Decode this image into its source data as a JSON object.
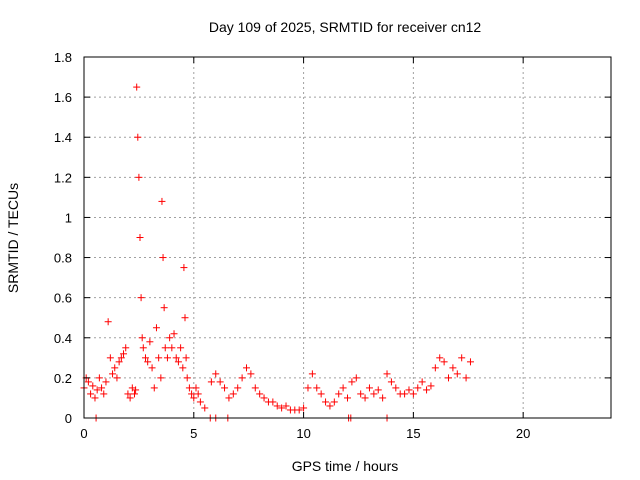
{
  "chart_data": {
    "type": "scatter",
    "title": "Day 109 of 2025, SRMTID for receiver cn12",
    "xlabel": "GPS time / hours",
    "ylabel": "SRMTID / TECUs",
    "xlim": [
      0,
      24
    ],
    "ylim": [
      0,
      1.8
    ],
    "xticks": [
      0,
      5,
      10,
      15,
      20
    ],
    "xtick_labels": [
      "0",
      "5",
      "10",
      "15",
      "20"
    ],
    "yticks": [
      0,
      0.2,
      0.4,
      0.6,
      0.8,
      1,
      1.2,
      1.4,
      1.6,
      1.8
    ],
    "ytick_labels": [
      "0",
      "0.2",
      "0.4",
      "0.6",
      "0.8",
      "1",
      "1.2",
      "1.4",
      "1.6",
      "1.8"
    ],
    "grid": true,
    "marker": "+",
    "marker_color": "#ff0000",
    "series": [
      {
        "name": "SRMTID",
        "x": [
          0.0,
          0.1,
          0.2,
          0.3,
          0.4,
          0.5,
          0.6,
          0.7,
          0.8,
          0.9,
          1.0,
          1.1,
          1.2,
          1.3,
          1.4,
          1.5,
          1.6,
          1.7,
          1.8,
          1.9,
          2.0,
          2.1,
          2.2,
          2.3,
          2.35,
          2.4,
          2.45,
          2.5,
          2.55,
          2.6,
          2.65,
          2.7,
          2.8,
          2.9,
          3.0,
          3.1,
          3.2,
          3.3,
          3.4,
          3.5,
          3.55,
          3.6,
          3.65,
          3.7,
          3.8,
          3.9,
          4.0,
          4.1,
          4.2,
          4.3,
          4.4,
          4.5,
          4.55,
          4.6,
          4.65,
          4.7,
          4.8,
          4.9,
          5.0,
          5.1,
          5.2,
          5.3,
          5.5,
          5.8,
          6.0,
          6.2,
          6.4,
          6.6,
          6.8,
          7.0,
          7.2,
          7.4,
          7.6,
          7.8,
          8.0,
          8.2,
          8.4,
          8.6,
          8.8,
          9.0,
          9.2,
          9.4,
          9.6,
          9.8,
          10.0,
          10.2,
          10.4,
          10.6,
          10.8,
          11.0,
          11.2,
          11.4,
          11.6,
          11.8,
          12.0,
          12.2,
          12.4,
          12.6,
          12.8,
          13.0,
          13.2,
          13.4,
          13.6,
          13.8,
          14.0,
          14.2,
          14.4,
          14.6,
          14.8,
          15.0,
          15.2,
          15.4,
          15.6,
          15.8,
          16.0,
          16.2,
          16.4,
          16.6,
          16.8,
          17.0,
          17.2,
          17.4,
          17.6,
          0.55,
          5.75,
          6.0,
          6.55,
          12.05,
          12.15,
          13.8
        ],
        "y": [
          0.15,
          0.2,
          0.18,
          0.12,
          0.16,
          0.1,
          0.14,
          0.2,
          0.15,
          0.12,
          0.18,
          0.48,
          0.3,
          0.22,
          0.25,
          0.2,
          0.28,
          0.3,
          0.32,
          0.35,
          0.12,
          0.1,
          0.15,
          0.12,
          0.14,
          1.65,
          1.4,
          1.2,
          0.9,
          0.6,
          0.4,
          0.35,
          0.3,
          0.28,
          0.38,
          0.25,
          0.15,
          0.45,
          0.3,
          0.2,
          1.08,
          0.8,
          0.55,
          0.35,
          0.3,
          0.4,
          0.35,
          0.42,
          0.3,
          0.28,
          0.35,
          0.25,
          0.75,
          0.5,
          0.3,
          0.2,
          0.15,
          0.12,
          0.1,
          0.15,
          0.12,
          0.08,
          0.05,
          0.18,
          0.22,
          0.18,
          0.15,
          0.1,
          0.12,
          0.15,
          0.2,
          0.25,
          0.22,
          0.15,
          0.12,
          0.1,
          0.08,
          0.08,
          0.06,
          0.05,
          0.06,
          0.04,
          0.04,
          0.04,
          0.05,
          0.15,
          0.22,
          0.15,
          0.12,
          0.08,
          0.06,
          0.08,
          0.12,
          0.15,
          0.1,
          0.18,
          0.2,
          0.12,
          0.1,
          0.15,
          0.12,
          0.14,
          0.1,
          0.22,
          0.18,
          0.15,
          0.12,
          0.12,
          0.14,
          0.12,
          0.15,
          0.18,
          0.14,
          0.16,
          0.25,
          0.3,
          0.28,
          0.2,
          0.25,
          0.22,
          0.3,
          0.2,
          0.28,
          0.0,
          0.0,
          0.0,
          0.0,
          0.0,
          0.0,
          0.0
        ]
      }
    ]
  }
}
